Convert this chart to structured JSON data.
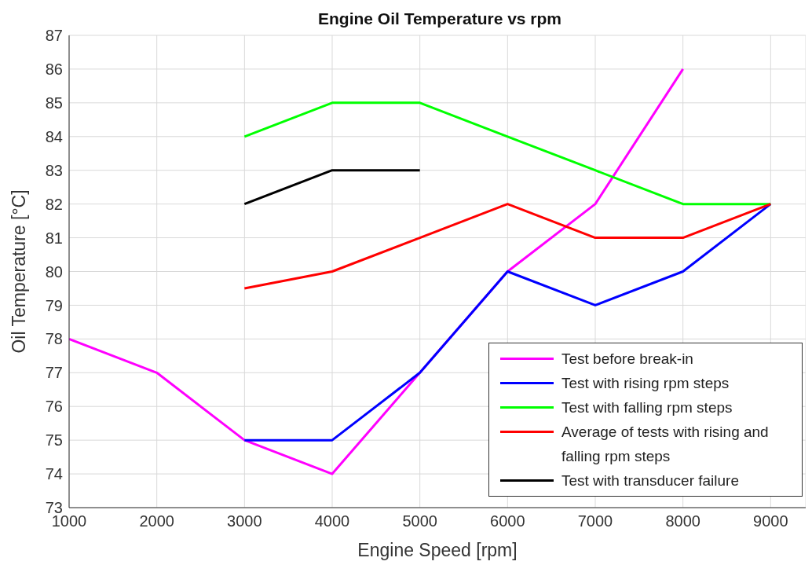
{
  "chart_data": {
    "type": "line",
    "title": "Engine Oil Temperature vs rpm",
    "xlabel": "Engine Speed [rpm]",
    "ylabel": "Oil Temperature [°C]",
    "xlim": [
      1000,
      9400
    ],
    "xticks": [
      1000,
      2000,
      3000,
      4000,
      5000,
      6000,
      7000,
      8000,
      9000
    ],
    "ylim": [
      73,
      87
    ],
    "yticks": [
      73,
      74,
      75,
      76,
      77,
      78,
      79,
      80,
      81,
      82,
      83,
      84,
      85,
      86,
      87
    ],
    "grid": true,
    "legend": "bottom right",
    "marker": "none",
    "line_style": "solid",
    "series": [
      {
        "name": "Test before break-in",
        "color": "#ff00ff",
        "x": [
          1000,
          2000,
          3000,
          4000,
          5000,
          6000,
          7000,
          8000
        ],
        "values": [
          78,
          77,
          75,
          74,
          77,
          80,
          82,
          86
        ]
      },
      {
        "name": "Test with rising rpm steps",
        "color": "#0000ff",
        "x": [
          3000,
          4000,
          5000,
          6000,
          7000,
          8000,
          9000
        ],
        "values": [
          75,
          75,
          77,
          80,
          79,
          80,
          82
        ]
      },
      {
        "name": "Test with falling rpm steps",
        "color": "#00ff00",
        "x": [
          3000,
          4000,
          5000,
          6000,
          7000,
          8000,
          9000
        ],
        "values": [
          84,
          85,
          85,
          84,
          83,
          82,
          82
        ]
      },
      {
        "name": "Average of tests with rising and falling rpm steps",
        "color": "#ff0000",
        "x": [
          3000,
          4000,
          5000,
          6000,
          7000,
          8000,
          9000
        ],
        "values": [
          79.5,
          80,
          81,
          82,
          81,
          81,
          82
        ]
      },
      {
        "name": "Test with transducer failure",
        "color": "#000000",
        "x": [
          3000,
          4000,
          5000
        ],
        "values": [
          82,
          83,
          83
        ]
      }
    ]
  }
}
